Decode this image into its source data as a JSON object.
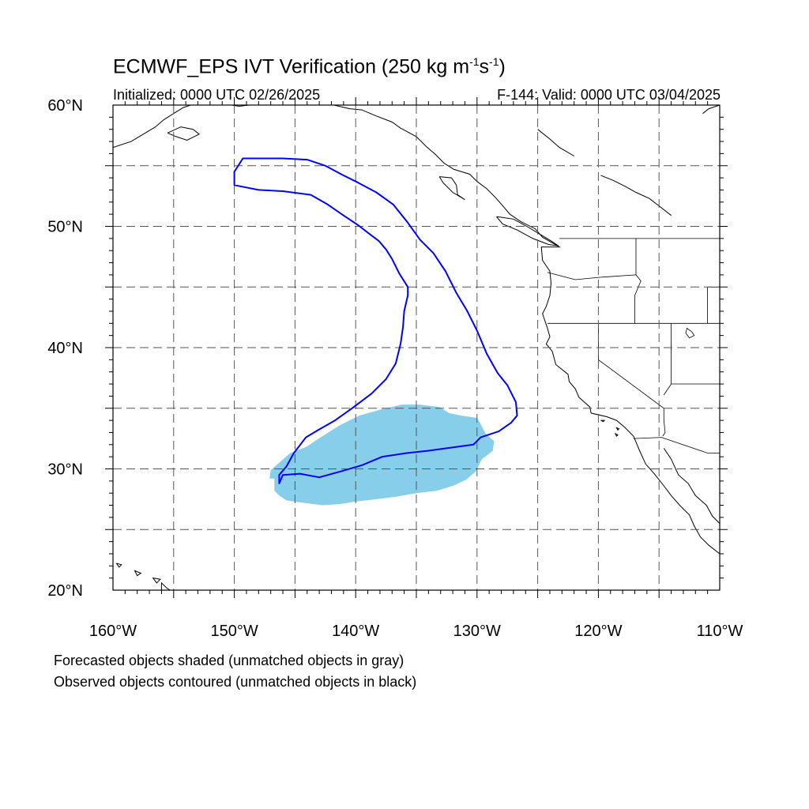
{
  "title": {
    "text_main": "ECMWF_EPS IVT Verification (250 kg m",
    "exp1": "-1",
    "text_mid": "s",
    "exp2": "-1",
    "text_end": ")"
  },
  "subtitle_left": "Initialized: 0000 UTC 02/26/2025",
  "subtitle_right": "F-144: Valid: 0000 UTC 03/04/2025",
  "captions": [
    "Forecasted objects shaded (unmatched objects in gray)",
    "Observed objects contoured (unmatched objects in black)"
  ],
  "colors": {
    "forecast_fill": "#87CEEB",
    "observed_contour": "#0000FF",
    "grid": "#555555",
    "coast": "#000000"
  },
  "map_data": {
    "lon_range": [
      -160,
      -110
    ],
    "lat_range": [
      20,
      60
    ],
    "lat_labels": [
      {
        "lat": 60,
        "text": "60°N"
      },
      {
        "lat": 50,
        "text": "50°N"
      },
      {
        "lat": 40,
        "text": "40°N"
      },
      {
        "lat": 30,
        "text": "30°N"
      },
      {
        "lat": 20,
        "text": "20°N"
      }
    ],
    "lon_labels": [
      {
        "lon": -160,
        "text": "160°W"
      },
      {
        "lon": -150,
        "text": "150°W"
      },
      {
        "lon": -140,
        "text": "140°W"
      },
      {
        "lon": -130,
        "text": "130°W"
      },
      {
        "lon": -120,
        "text": "120°W"
      },
      {
        "lon": -110,
        "text": "110°W"
      }
    ],
    "grid_lats": [
      25,
      30,
      35,
      40,
      45,
      50,
      55
    ],
    "grid_lons": [
      -155,
      -150,
      -145,
      -140,
      -135,
      -130,
      -125,
      -120,
      -115
    ],
    "forecast_object": [
      [
        -146.7,
        29.2
      ],
      [
        -146.7,
        28.2
      ],
      [
        -146.3,
        27.8
      ],
      [
        -145.7,
        27.4
      ],
      [
        -144.3,
        27.2
      ],
      [
        -142.7,
        27.0
      ],
      [
        -141.3,
        27.1
      ],
      [
        -140.0,
        27.3
      ],
      [
        -138.3,
        27.5
      ],
      [
        -136.7,
        27.7
      ],
      [
        -135.0,
        28.0
      ],
      [
        -133.3,
        28.2
      ],
      [
        -132.0,
        28.6
      ],
      [
        -130.9,
        29.1
      ],
      [
        -130.1,
        29.8
      ],
      [
        -129.6,
        30.8
      ],
      [
        -128.7,
        31.5
      ],
      [
        -128.6,
        32.3
      ],
      [
        -129.3,
        32.9
      ],
      [
        -129.7,
        33.7
      ],
      [
        -130.0,
        34.2
      ],
      [
        -131.3,
        34.4
      ],
      [
        -132.3,
        34.6
      ],
      [
        -133.1,
        35.1
      ],
      [
        -134.7,
        35.3
      ],
      [
        -136.2,
        35.3
      ],
      [
        -137.9,
        34.9
      ],
      [
        -139.7,
        34.4
      ],
      [
        -141.3,
        33.6
      ],
      [
        -142.9,
        32.6
      ],
      [
        -144.1,
        31.8
      ],
      [
        -145.4,
        31.3
      ],
      [
        -146.2,
        30.6
      ],
      [
        -147.0,
        29.9
      ],
      [
        -147.1,
        29.2
      ]
    ],
    "observed_object": [
      [
        -146.3,
        28.8
      ],
      [
        -146.3,
        29.5
      ],
      [
        -145.7,
        30.2
      ],
      [
        -145.1,
        31.3
      ],
      [
        -144.1,
        32.6
      ],
      [
        -143.1,
        33.2
      ],
      [
        -141.7,
        34.0
      ],
      [
        -140.3,
        35.0
      ],
      [
        -138.7,
        36.2
      ],
      [
        -137.5,
        37.4
      ],
      [
        -136.7,
        38.7
      ],
      [
        -136.3,
        40.3
      ],
      [
        -136.1,
        41.7
      ],
      [
        -136.0,
        43.0
      ],
      [
        -135.7,
        44.3
      ],
      [
        -135.7,
        45.0
      ],
      [
        -136.4,
        46.1
      ],
      [
        -137.0,
        47.3
      ],
      [
        -137.5,
        48.1
      ],
      [
        -138.1,
        48.8
      ],
      [
        -138.9,
        49.4
      ],
      [
        -139.8,
        50.1
      ],
      [
        -141.0,
        50.9
      ],
      [
        -142.3,
        51.8
      ],
      [
        -143.7,
        52.6
      ],
      [
        -146.0,
        52.9
      ],
      [
        -148.0,
        53.0
      ],
      [
        -150.0,
        53.4
      ],
      [
        -150.0,
        54.5
      ],
      [
        -149.3,
        55.6
      ],
      [
        -146.0,
        55.6
      ],
      [
        -144.0,
        55.5
      ],
      [
        -142.5,
        55.0
      ],
      [
        -141.2,
        54.3
      ],
      [
        -139.8,
        53.6
      ],
      [
        -138.3,
        52.8
      ],
      [
        -136.9,
        51.8
      ],
      [
        -135.7,
        50.3
      ],
      [
        -134.7,
        48.9
      ],
      [
        -133.6,
        47.8
      ],
      [
        -132.6,
        46.3
      ],
      [
        -131.7,
        44.5
      ],
      [
        -130.8,
        43.0
      ],
      [
        -130.0,
        41.4
      ],
      [
        -129.2,
        39.5
      ],
      [
        -128.3,
        37.9
      ],
      [
        -127.5,
        36.9
      ],
      [
        -126.8,
        35.5
      ],
      [
        -126.7,
        34.4
      ],
      [
        -127.2,
        33.8
      ],
      [
        -128.2,
        33.1
      ],
      [
        -129.7,
        32.6
      ],
      [
        -130.3,
        32.0
      ],
      [
        -131.8,
        31.8
      ],
      [
        -134.0,
        31.5
      ],
      [
        -135.8,
        31.3
      ],
      [
        -137.8,
        31.0
      ],
      [
        -139.5,
        30.3
      ],
      [
        -141.2,
        29.8
      ],
      [
        -143.0,
        29.3
      ],
      [
        -144.6,
        29.6
      ],
      [
        -146.0,
        29.5
      ],
      [
        -146.3,
        28.8
      ]
    ],
    "coastlines": [
      [
        [
          -160,
          56.5
        ],
        [
          -158.5,
          57.0
        ],
        [
          -157.5,
          57.6
        ],
        [
          -156.5,
          58.2
        ],
        [
          -155.8,
          58.8
        ],
        [
          -155.0,
          59.3
        ],
        [
          -154.2,
          59.8
        ],
        [
          -153.6,
          60.0
        ]
      ],
      [
        [
          -155.5,
          57.7
        ],
        [
          -154.8,
          57.4
        ],
        [
          -153.9,
          57.1
        ],
        [
          -152.9,
          57.6
        ],
        [
          -153.4,
          58.0
        ],
        [
          -154.4,
          58.2
        ],
        [
          -155.5,
          57.7
        ]
      ],
      [
        [
          -150.2,
          60.0
        ],
        [
          -149.6,
          59.9
        ],
        [
          -148.8,
          60.0
        ]
      ],
      [
        [
          -146.5,
          60.0
        ],
        [
          -145.6,
          60.1
        ],
        [
          -144.8,
          60.1
        ],
        [
          -144.2,
          60.0
        ]
      ],
      [
        [
          -141.8,
          60.0
        ],
        [
          -140.5,
          59.7
        ],
        [
          -139.5,
          59.6
        ],
        [
          -138.3,
          59.1
        ],
        [
          -137.0,
          58.6
        ],
        [
          -136.3,
          58.1
        ],
        [
          -135.0,
          57.4
        ],
        [
          -134.2,
          56.6
        ],
        [
          -133.4,
          55.9
        ],
        [
          -132.7,
          55.2
        ],
        [
          -131.9,
          54.7
        ],
        [
          -130.6,
          54.3
        ],
        [
          -130.0,
          53.7
        ],
        [
          -129.2,
          53.1
        ],
        [
          -128.5,
          52.4
        ],
        [
          -127.8,
          51.6
        ],
        [
          -127.3,
          51.0
        ],
        [
          -126.4,
          50.4
        ],
        [
          -125.2,
          49.8
        ],
        [
          -124.6,
          49.1
        ],
        [
          -123.2,
          48.3
        ],
        [
          -124.7,
          48.3
        ],
        [
          -124.6,
          47.2
        ],
        [
          -124.0,
          46.3
        ],
        [
          -123.9,
          45.3
        ],
        [
          -124.0,
          44.3
        ],
        [
          -124.3,
          43.4
        ],
        [
          -124.6,
          42.8
        ],
        [
          -124.2,
          41.6
        ],
        [
          -124.0,
          40.9
        ],
        [
          -124.3,
          40.3
        ],
        [
          -123.8,
          39.7
        ],
        [
          -123.5,
          38.6
        ],
        [
          -122.5,
          37.8
        ],
        [
          -122.4,
          37.2
        ],
        [
          -121.9,
          36.6
        ],
        [
          -121.6,
          35.9
        ],
        [
          -120.7,
          35.1
        ],
        [
          -120.6,
          34.6
        ],
        [
          -119.3,
          34.3
        ],
        [
          -118.5,
          34.0
        ],
        [
          -117.8,
          33.4
        ],
        [
          -117.1,
          32.7
        ],
        [
          -116.6,
          31.5
        ],
        [
          -116.1,
          30.4
        ],
        [
          -115.4,
          29.6
        ],
        [
          -114.6,
          28.6
        ],
        [
          -114.0,
          27.8
        ],
        [
          -113.3,
          27.0
        ],
        [
          -112.5,
          26.2
        ],
        [
          -112.1,
          25.3
        ],
        [
          -111.6,
          24.4
        ],
        [
          -110.9,
          23.7
        ],
        [
          -110.0,
          23.0
        ]
      ],
      [
        [
          -114.6,
          31.7
        ],
        [
          -114.0,
          30.8
        ],
        [
          -113.4,
          29.5
        ],
        [
          -112.6,
          28.8
        ],
        [
          -112.0,
          27.8
        ],
        [
          -111.1,
          27.0
        ],
        [
          -110.6,
          26.1
        ],
        [
          -110.0,
          25.5
        ]
      ],
      [
        [
          -133.1,
          54.1
        ],
        [
          -132.1,
          54.0
        ],
        [
          -131.7,
          53.4
        ],
        [
          -131.6,
          52.6
        ],
        [
          -131.0,
          52.2
        ],
        [
          -132.0,
          52.8
        ],
        [
          -132.8,
          53.6
        ],
        [
          -133.1,
          54.1
        ]
      ],
      [
        [
          -128.4,
          50.8
        ],
        [
          -127.0,
          50.6
        ],
        [
          -125.9,
          50.0
        ],
        [
          -124.9,
          49.4
        ],
        [
          -123.9,
          48.8
        ],
        [
          -123.3,
          48.4
        ],
        [
          -124.1,
          48.5
        ],
        [
          -125.4,
          49.0
        ],
        [
          -126.7,
          49.7
        ],
        [
          -127.9,
          50.2
        ],
        [
          -128.4,
          50.8
        ]
      ],
      [
        [
          -110.0,
          60.0
        ],
        [
          -110.9,
          59.7
        ],
        [
          -111.4,
          59.3
        ]
      ],
      [
        [
          -125.0,
          58.0
        ],
        [
          -124.0,
          57.2
        ],
        [
          -123.2,
          56.5
        ],
        [
          -122.0,
          55.8
        ]
      ],
      [
        [
          -119.8,
          54.2
        ],
        [
          -118.8,
          53.8
        ],
        [
          -117.8,
          53.3
        ],
        [
          -116.9,
          52.8
        ],
        [
          -115.8,
          52.3
        ],
        [
          -114.9,
          51.6
        ],
        [
          -114.0,
          50.9
        ]
      ]
    ],
    "islands": [
      [
        [
          -156.0,
          20.6
        ],
        [
          -155.6,
          20.2
        ],
        [
          -155.0,
          19.8
        ],
        [
          -155.8,
          19.4
        ],
        [
          -156.0,
          20.0
        ],
        [
          -156.0,
          20.6
        ]
      ],
      [
        [
          -156.7,
          21.0
        ],
        [
          -156.1,
          20.9
        ],
        [
          -156.4,
          20.6
        ],
        [
          -156.7,
          21.0
        ]
      ],
      [
        [
          -158.2,
          21.6
        ],
        [
          -157.7,
          21.4
        ],
        [
          -158.0,
          21.2
        ],
        [
          -158.2,
          21.6
        ]
      ],
      [
        [
          -159.7,
          22.2
        ],
        [
          -159.3,
          22.1
        ],
        [
          -159.5,
          21.9
        ],
        [
          -159.7,
          22.2
        ]
      ],
      [
        [
          -119.8,
          34.0
        ],
        [
          -119.5,
          34.0
        ],
        [
          -119.6,
          33.9
        ],
        [
          -119.8,
          34.0
        ]
      ],
      [
        [
          -118.5,
          33.4
        ],
        [
          -118.3,
          33.3
        ],
        [
          -118.4,
          33.2
        ],
        [
          -118.5,
          33.4
        ]
      ],
      [
        [
          -118.6,
          32.9
        ],
        [
          -118.4,
          32.8
        ],
        [
          -118.5,
          32.7
        ],
        [
          -118.6,
          32.9
        ]
      ]
    ],
    "borders": [
      [
        [
          -123.2,
          49.0
        ],
        [
          -110.0,
          49.0
        ]
      ],
      [
        [
          -124.2,
          46.2
        ],
        [
          -121.9,
          45.6
        ],
        [
          -119.9,
          45.8
        ],
        [
          -116.9,
          46.0
        ]
      ],
      [
        [
          -116.9,
          49.0
        ],
        [
          -116.9,
          46.0
        ],
        [
          -116.5,
          45.5
        ],
        [
          -117.0,
          44.3
        ],
        [
          -117.0,
          42.0
        ]
      ],
      [
        [
          -124.2,
          42.0
        ],
        [
          -110.0,
          42.0
        ]
      ],
      [
        [
          -120.0,
          42.0
        ],
        [
          -120.0,
          39.0
        ],
        [
          -114.6,
          35.0
        ]
      ],
      [
        [
          -114.0,
          42.0
        ],
        [
          -114.0,
          37.0
        ],
        [
          -114.6,
          36.1
        ]
      ],
      [
        [
          -114.0,
          37.0
        ],
        [
          -110.0,
          37.0
        ]
      ],
      [
        [
          -111.0,
          45.0
        ],
        [
          -111.0,
          42.0
        ]
      ],
      [
        [
          -111.0,
          45.0
        ],
        [
          -110.0,
          45.0
        ]
      ],
      [
        [
          -117.1,
          32.5
        ],
        [
          -114.8,
          32.6
        ],
        [
          -111.0,
          31.3
        ],
        [
          -110.0,
          31.3
        ]
      ],
      [
        [
          -114.7,
          32.7
        ],
        [
          -114.5,
          33.0
        ],
        [
          -114.6,
          34.0
        ],
        [
          -114.6,
          35.0
        ]
      ]
    ],
    "lakes": [
      [
        [
          -112.7,
          41.6
        ],
        [
          -112.3,
          41.3
        ],
        [
          -112.1,
          41.0
        ],
        [
          -112.5,
          40.8
        ],
        [
          -112.8,
          41.2
        ],
        [
          -112.7,
          41.6
        ]
      ]
    ]
  }
}
